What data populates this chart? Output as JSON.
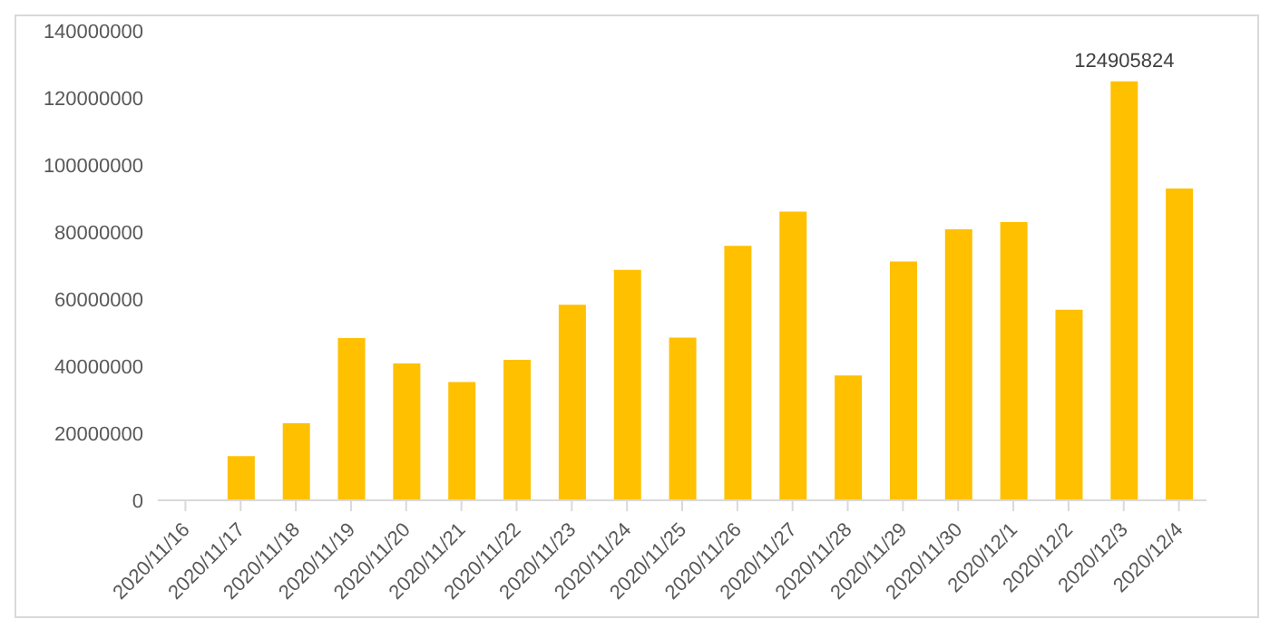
{
  "chart_data": {
    "type": "bar",
    "categories": [
      "2020/11/16",
      "2020/11/17",
      "2020/11/18",
      "2020/11/19",
      "2020/11/20",
      "2020/11/21",
      "2020/11/22",
      "2020/11/23",
      "2020/11/24",
      "2020/11/25",
      "2020/11/26",
      "2020/11/27",
      "2020/11/28",
      "2020/11/29",
      "2020/11/30",
      "2020/12/1",
      "2020/12/2",
      "2020/12/3",
      "2020/12/4"
    ],
    "values": [
      0,
      13200000,
      23000000,
      48400000,
      40800000,
      35300000,
      41900000,
      58300000,
      68700000,
      48500000,
      75900000,
      86100000,
      37200000,
      71200000,
      80800000,
      83000000,
      56800000,
      124905824,
      93000000
    ],
    "value_labels": [
      null,
      null,
      null,
      null,
      null,
      null,
      null,
      null,
      null,
      null,
      null,
      null,
      null,
      null,
      null,
      null,
      null,
      "124905824",
      null
    ],
    "color": "#ffc000",
    "ylim": [
      0,
      140000000
    ],
    "yticks": [
      0,
      20000000,
      40000000,
      60000000,
      80000000,
      100000000,
      120000000,
      140000000
    ],
    "grid": false,
    "legend": false
  }
}
